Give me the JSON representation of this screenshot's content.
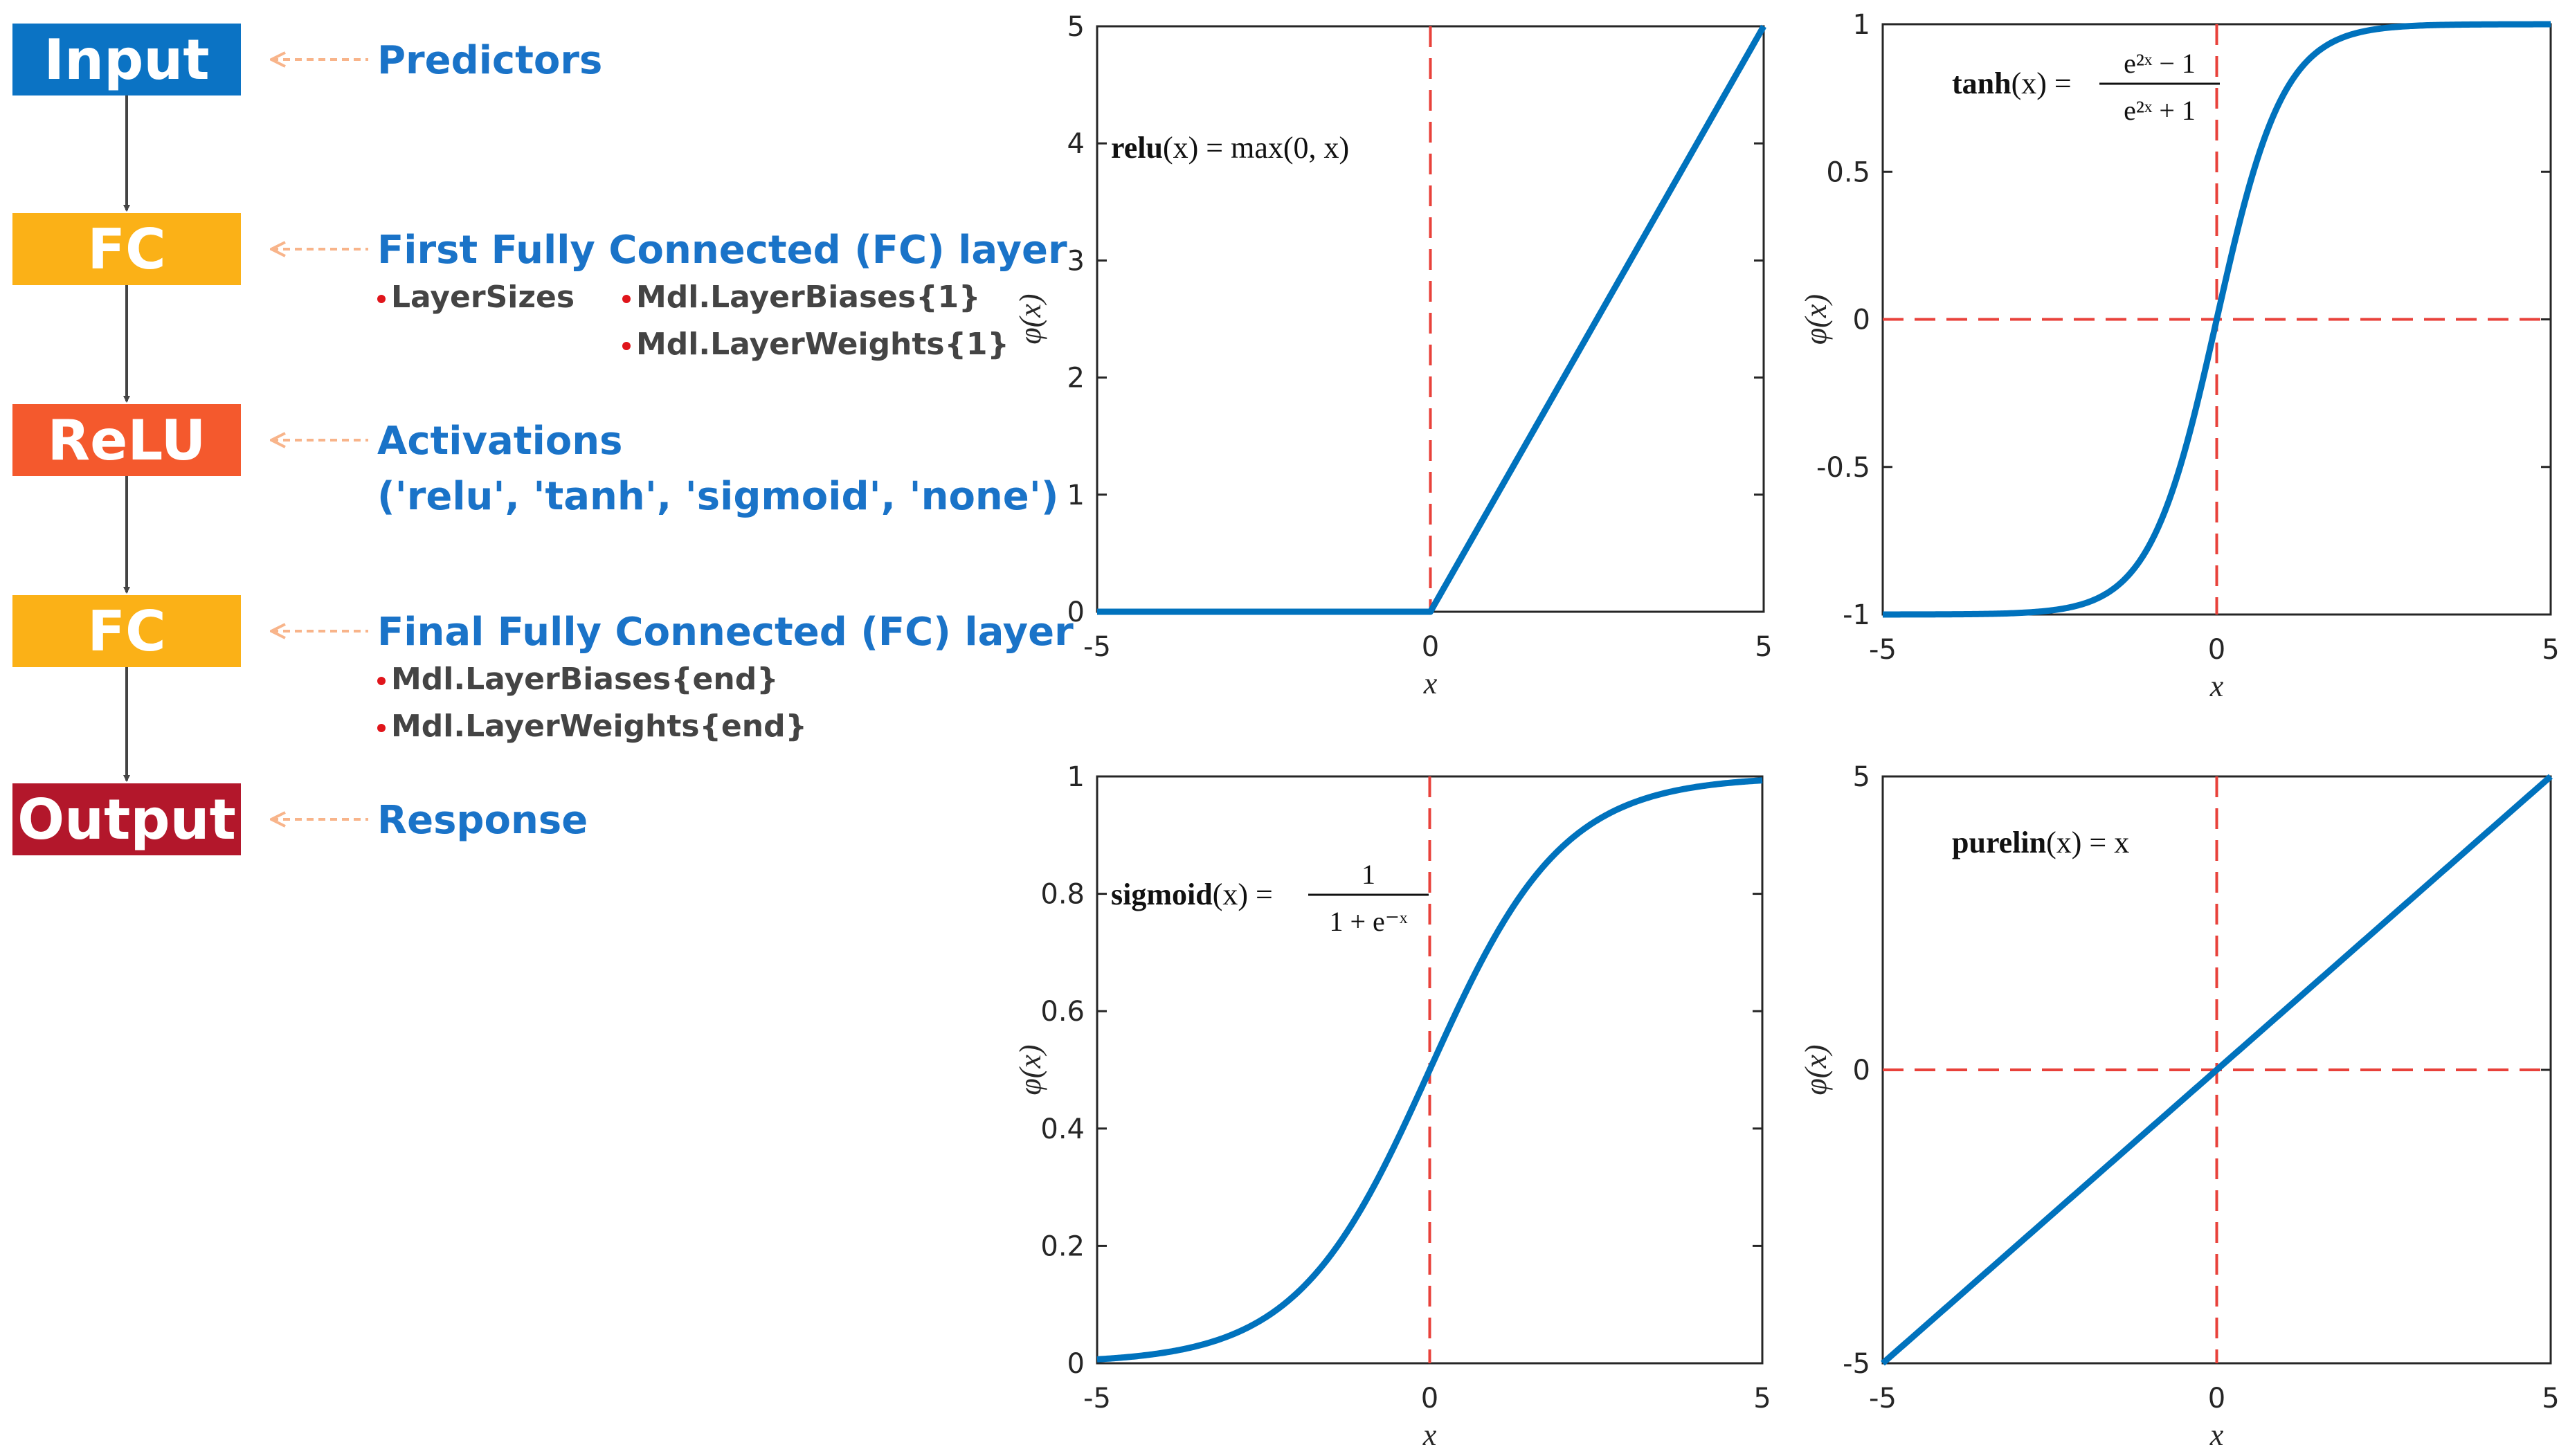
{
  "diagram": {
    "blocks": [
      {
        "id": "input",
        "label": "Input",
        "color": "#0b73c4",
        "annotation": "Predictors",
        "bullets_left": [],
        "bullets_right": []
      },
      {
        "id": "fc1",
        "label": "FC",
        "color": "#fbb117",
        "annotation": "First Fully Connected (FC) layer",
        "annotation2": "",
        "bullets_left": [
          "LayerSizes"
        ],
        "bullets_right": [
          "Mdl.LayerBiases{1}",
          "Mdl.LayerWeights{1}"
        ]
      },
      {
        "id": "relu",
        "label": "ReLU",
        "color": "#f4592d",
        "annotation": "Activations",
        "annotation2": "('relu', 'tanh', 'sigmoid', 'none')",
        "bullets_left": [],
        "bullets_right": []
      },
      {
        "id": "fc2",
        "label": "FC",
        "color": "#fbb117",
        "annotation": "Final Fully Connected (FC) layer",
        "annotation2": "",
        "bullets_left": [
          "Mdl.LayerBiases{end}",
          "Mdl.LayerWeights{end}"
        ],
        "bullets_right": []
      },
      {
        "id": "output",
        "label": "Output",
        "color": "#b3172b",
        "annotation": "Response",
        "bullets_left": [],
        "bullets_right": []
      }
    ],
    "annotation_color": "#1a73c8",
    "bullet_text_color": "#444444",
    "bullet_dot_color": "#e0151b",
    "connector_color": "#f8b48a"
  },
  "chart_data": [
    {
      "id": "relu",
      "type": "line",
      "function": "relu",
      "xlabel": "x",
      "ylabel": "φ(x)",
      "xlim": [
        -5,
        5
      ],
      "ylim": [
        0,
        5
      ],
      "xticks": [
        -5,
        0,
        5
      ],
      "yticks": [
        0,
        1,
        2,
        3,
        4,
        5
      ],
      "vline": 0,
      "hline": null,
      "formula": {
        "name": "relu",
        "text": "(x) = max(0, x)"
      },
      "line_color": "#0072bd",
      "ref_color": "#e8413a"
    },
    {
      "id": "tanh",
      "type": "line",
      "function": "tanh",
      "xlabel": "x",
      "ylabel": "φ(x)",
      "xlim": [
        -5,
        5
      ],
      "ylim": [
        -1,
        1
      ],
      "xticks": [
        -5,
        0,
        5
      ],
      "yticks": [
        -1,
        -0.5,
        0,
        0.5,
        1
      ],
      "vline": 0,
      "hline": 0,
      "formula": {
        "name": "tanh",
        "text": "(x) =",
        "numerator": "e²ˣ − 1",
        "denominator": "e²ˣ + 1"
      },
      "line_color": "#0072bd",
      "ref_color": "#e8413a"
    },
    {
      "id": "sigmoid",
      "type": "line",
      "function": "sigmoid",
      "xlabel": "x",
      "ylabel": "φ(x)",
      "xlim": [
        -5,
        5
      ],
      "ylim": [
        0,
        1
      ],
      "xticks": [
        -5,
        0,
        5
      ],
      "yticks": [
        0,
        0.2,
        0.4,
        0.6,
        0.8,
        1
      ],
      "vline": 0,
      "hline": null,
      "formula": {
        "name": "sigmoid",
        "text": "(x) =",
        "numerator": "1",
        "denominator": "1 + e⁻ˣ"
      },
      "line_color": "#0072bd",
      "ref_color": "#e8413a"
    },
    {
      "id": "purelin",
      "type": "line",
      "function": "purelin",
      "xlabel": "x",
      "ylabel": "φ(x)",
      "xlim": [
        -5,
        5
      ],
      "ylim": [
        -5,
        5
      ],
      "xticks": [
        -5,
        0,
        5
      ],
      "yticks": [
        -5,
        0,
        5
      ],
      "vline": 0,
      "hline": 0,
      "formula": {
        "name": "purelin",
        "text": "(x) = x"
      },
      "line_color": "#0072bd",
      "ref_color": "#e8413a"
    }
  ]
}
